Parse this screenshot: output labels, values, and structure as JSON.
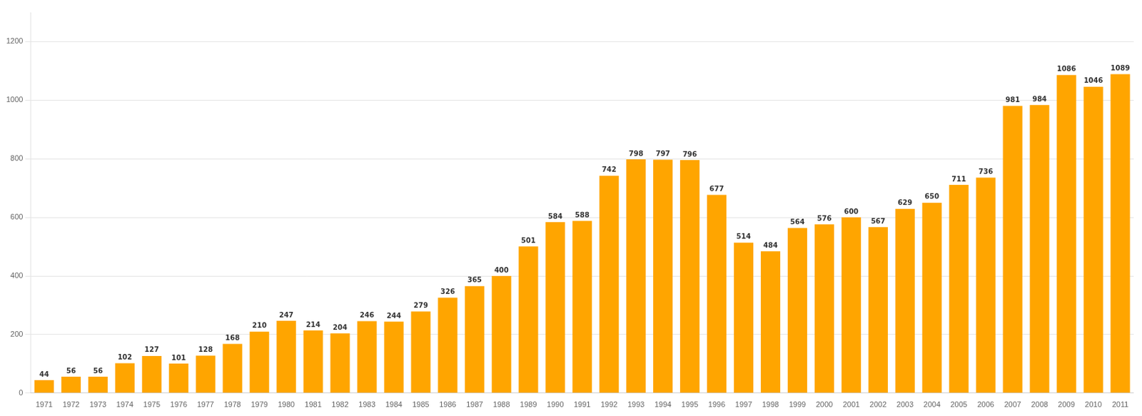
{
  "chart_data": {
    "type": "bar",
    "categories": [
      "1971",
      "1972",
      "1973",
      "1974",
      "1975",
      "1976",
      "1977",
      "1978",
      "1979",
      "1980",
      "1981",
      "1982",
      "1983",
      "1984",
      "1985",
      "1986",
      "1987",
      "1988",
      "1989",
      "1990",
      "1991",
      "1992",
      "1993",
      "1994",
      "1995",
      "1996",
      "1997",
      "1998",
      "1999",
      "2000",
      "2001",
      "2002",
      "2003",
      "2004",
      "2005",
      "2006",
      "2007",
      "2008",
      "2009",
      "2010",
      "2011"
    ],
    "values": [
      44,
      56,
      56,
      102,
      127,
      101,
      128,
      168,
      210,
      247,
      214,
      204,
      246,
      244,
      279,
      326,
      365,
      400,
      501,
      584,
      588,
      742,
      798,
      797,
      796,
      677,
      514,
      484,
      564,
      576,
      600,
      567,
      629,
      650,
      711,
      736,
      981,
      984,
      1086,
      1046,
      1089
    ],
    "color": "#FFA500",
    "ylim": [
      0,
      1300
    ],
    "yticks": [
      0,
      200,
      400,
      600,
      800,
      1000,
      1200
    ],
    "grid": true,
    "data_labels": true
  }
}
